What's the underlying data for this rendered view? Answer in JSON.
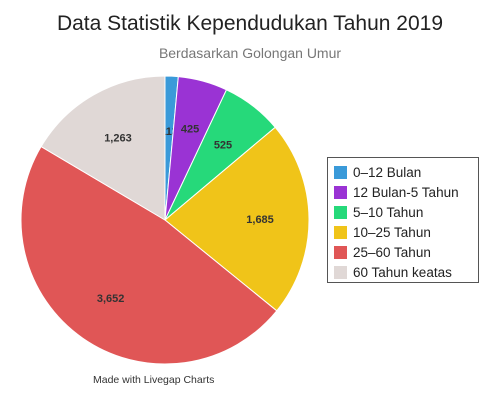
{
  "chart_data": {
    "type": "pie",
    "title": "Data Statistik Kependudukan Tahun 2019",
    "subtitle": "Berdasarkan Golongan Umur",
    "legend_position": "right",
    "slices": [
      {
        "label": "0–12 Bulan",
        "value": 113,
        "value_label": "113",
        "color": "#3a9ad9"
      },
      {
        "label": "12 Bulan-5 Tahun",
        "value": 425,
        "value_label": "425",
        "color": "#9a33d4"
      },
      {
        "label": "5–10 Tahun",
        "value": 525,
        "value_label": "525",
        "color": "#26d97a"
      },
      {
        "label": "10–25 Tahun",
        "value": 1685,
        "value_label": "1,685",
        "color": "#f0c419"
      },
      {
        "label": "25–60 Tahun",
        "value": 3652,
        "value_label": "3,652",
        "color": "#e05656"
      },
      {
        "label": "60 Tahun keatas",
        "value": 1263,
        "value_label": "1,263",
        "color": "#e0d8d6"
      }
    ]
  },
  "footer": {
    "credit": "Made with Livegap Charts"
  }
}
